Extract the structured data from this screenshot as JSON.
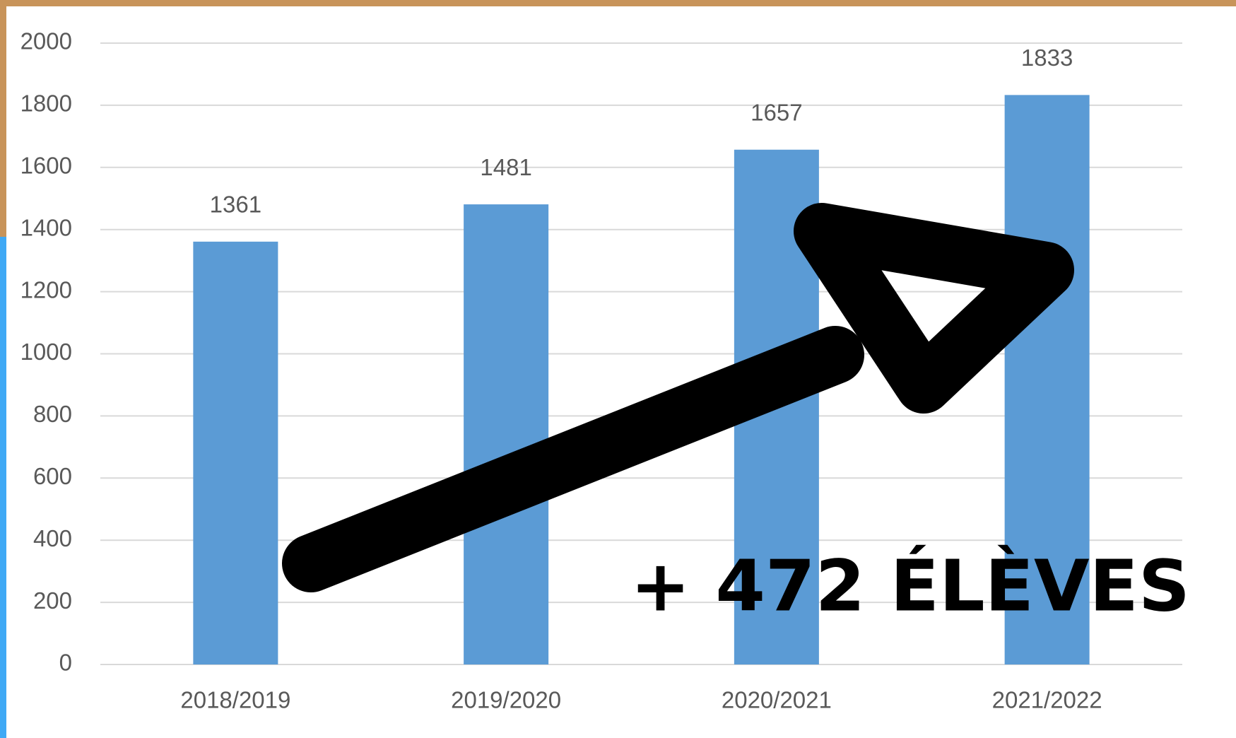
{
  "chart_data": {
    "type": "bar",
    "categories": [
      "2018/2019",
      "2019/2020",
      "2020/2021",
      "2021/2022"
    ],
    "values": [
      1361,
      1481,
      1657,
      1833
    ],
    "color": "#5b9bd5",
    "ylim": [
      0,
      2000
    ],
    "yticks": [
      0,
      200,
      400,
      600,
      800,
      1000,
      1200,
      1400,
      1600,
      1800,
      2000
    ],
    "grid": true,
    "annotation": "+ 472 ÉLÈVES"
  }
}
